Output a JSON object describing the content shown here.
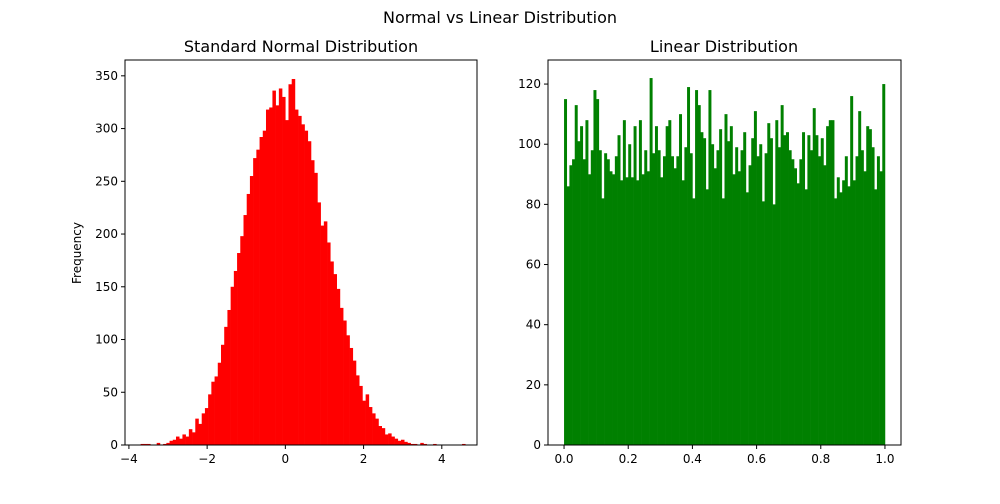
{
  "figure": {
    "title": "Normal vs Linear Distribution"
  },
  "chart_data": [
    {
      "type": "bar",
      "title": "Standard Normal Distribution",
      "xlabel": "",
      "ylabel": "Frequency",
      "xlim": [
        -4.1,
        4.9
      ],
      "ylim": [
        0,
        365
      ],
      "xticks": [
        -4,
        -2,
        0,
        2,
        4
      ],
      "yticks": [
        0,
        50,
        100,
        150,
        200,
        250,
        300,
        350
      ],
      "color": "#ff0000",
      "bin_range": [
        -3.7,
        4.6
      ],
      "values": [
        1,
        1,
        1,
        0,
        0,
        2,
        0,
        1,
        2,
        4,
        5,
        8,
        6,
        10,
        8,
        15,
        12,
        25,
        20,
        30,
        35,
        48,
        60,
        65,
        78,
        95,
        112,
        128,
        150,
        165,
        182,
        198,
        218,
        238,
        255,
        272,
        280,
        292,
        298,
        318,
        320,
        336,
        322,
        338,
        330,
        308,
        342,
        347,
        318,
        312,
        304,
        298,
        288,
        270,
        258,
        230,
        208,
        212,
        192,
        174,
        162,
        148,
        130,
        118,
        104,
        92,
        80,
        66,
        56,
        42,
        48,
        36,
        30,
        25,
        18,
        16,
        10,
        11,
        8,
        6,
        4,
        5,
        3,
        2,
        1,
        1,
        0,
        2,
        1,
        0,
        0,
        1,
        0,
        0,
        0,
        0,
        0,
        0,
        0,
        0,
        1
      ]
    },
    {
      "type": "bar",
      "title": "Linear Distribution",
      "xlabel": "",
      "ylabel": "",
      "xlim": [
        -0.05,
        1.05
      ],
      "ylim": [
        0,
        128
      ],
      "xticks": [
        0.0,
        0.2,
        0.4,
        0.6,
        0.8,
        1.0
      ],
      "yticks": [
        0,
        20,
        40,
        60,
        80,
        100,
        120
      ],
      "color": "#008000",
      "bin_range": [
        0,
        1
      ],
      "values": [
        115,
        86,
        93,
        95,
        113,
        101,
        106,
        95,
        108,
        90,
        98,
        118,
        115,
        98,
        82,
        97,
        95,
        91,
        90,
        96,
        103,
        88,
        108,
        89,
        100,
        89,
        106,
        88,
        108,
        90,
        98,
        91,
        122,
        97,
        106,
        98,
        89,
        96,
        106,
        108,
        96,
        92,
        96,
        110,
        88,
        99,
        119,
        97,
        82,
        118,
        113,
        104,
        102,
        85,
        118,
        100,
        92,
        98,
        105,
        82,
        110,
        101,
        106,
        90,
        99,
        91,
        98,
        104,
        84,
        93,
        102,
        111,
        96,
        100,
        81,
        97,
        107,
        102,
        80,
        108,
        99,
        113,
        103,
        104,
        98,
        95,
        92,
        87,
        95,
        104,
        85,
        103,
        98,
        112,
        103,
        96,
        102,
        93,
        106,
        108,
        108,
        82,
        89,
        84,
        88,
        96,
        86,
        116,
        88,
        96,
        111,
        98,
        91,
        106,
        105,
        99,
        85,
        96,
        91,
        120
      ]
    }
  ]
}
